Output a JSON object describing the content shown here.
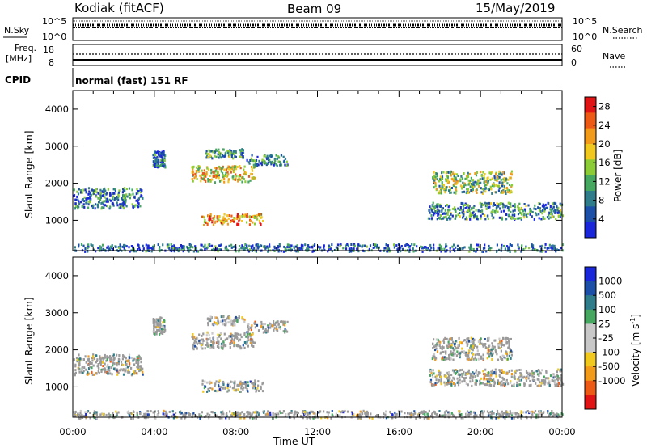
{
  "header": {
    "radar": "Kodiak (fitACF)",
    "beam": "Beam 09",
    "date": "15/May/2019"
  },
  "noise_panel": {
    "left_label": "N.Sky",
    "right_label": "N.Search",
    "left_ticks": [
      "10^5",
      "10^0"
    ],
    "right_ticks": [
      "10^5",
      "10^0"
    ]
  },
  "freq_panel": {
    "left_label_1": "Freq.",
    "left_label_2": "[MHz]",
    "right_label": "Nave",
    "left_ticks": [
      "18",
      "8"
    ],
    "right_ticks": [
      "60",
      "0"
    ]
  },
  "cpid": {
    "label": "CPID",
    "value": "normal (fast) 151 RF"
  },
  "colors": {
    "power_scale": [
      "#1a26d9",
      "#1c4fa8",
      "#2f7c8a",
      "#46a860",
      "#8ccc36",
      "#f0c81e",
      "#f29a1a",
      "#ec5a16",
      "#e01414"
    ],
    "velocity_scale": [
      "#e01414",
      "#ec5a16",
      "#f29a1a",
      "#f0c81e",
      "#c8c8c8",
      "#c8c8c8",
      "#46a860",
      "#2f7c8a",
      "#1c4fa8",
      "#1a26d9"
    ],
    "ground_scatter": "#9a9a9a"
  },
  "chart_data": [
    {
      "type": "heatmap",
      "quantity": "power",
      "ylabel": "Slant Range [km]",
      "yticks": [
        "1000",
        "2000",
        "3000",
        "4000"
      ],
      "ylim": [
        180,
        4500
      ],
      "xlim": [
        0,
        24
      ],
      "colorbar_label": "Power [dB]",
      "colorbar_ticks": [
        "4",
        "8",
        "12",
        "16",
        "20",
        "24",
        "28"
      ],
      "colorbar_range": [
        0,
        30
      ],
      "regions": [
        {
          "t0": 0.0,
          "t1": 3.4,
          "r0": 1350,
          "r1": 1900,
          "level": 0.25
        },
        {
          "t0": 3.9,
          "t1": 4.5,
          "r0": 2450,
          "r1": 2900,
          "level": 0.2
        },
        {
          "t0": 5.8,
          "t1": 8.9,
          "r0": 2050,
          "r1": 2500,
          "level": 0.6
        },
        {
          "t0": 6.5,
          "t1": 8.4,
          "r0": 2700,
          "r1": 2950,
          "level": 0.35
        },
        {
          "t0": 6.3,
          "t1": 9.3,
          "r0": 900,
          "r1": 1200,
          "level": 0.7
        },
        {
          "t0": 8.5,
          "t1": 10.5,
          "r0": 2500,
          "r1": 2800,
          "level": 0.25
        },
        {
          "t0": 17.6,
          "t1": 21.5,
          "r0": 1750,
          "r1": 2350,
          "level": 0.45
        },
        {
          "t0": 17.4,
          "t1": 24.0,
          "r0": 1050,
          "r1": 1500,
          "level": 0.3
        },
        {
          "t0": 0.0,
          "t1": 24.0,
          "r0": 180,
          "r1": 380,
          "level": 0.2
        }
      ]
    },
    {
      "type": "heatmap",
      "quantity": "velocity",
      "ylabel": "Slant Range [km]",
      "yticks": [
        "1000",
        "2000",
        "3000",
        "4000"
      ],
      "ylim": [
        180,
        4500
      ],
      "xlim": [
        0,
        24
      ],
      "xticks": [
        "00:00",
        "04:00",
        "08:00",
        "12:00",
        "16:00",
        "20:00",
        "00:00"
      ],
      "xlabel": "Time UT",
      "colorbar_label": "Velocity [m s",
      "colorbar_label_sup": "-1",
      "colorbar_label_end": "]",
      "colorbar_ticks": [
        "1000",
        "500",
        "100",
        "25",
        "-25",
        "-100",
        "-500",
        "-1000"
      ],
      "regions": [
        {
          "t0": 0.0,
          "t1": 3.4,
          "r0": 1350,
          "r1": 1900,
          "level": 0.5
        },
        {
          "t0": 3.9,
          "t1": 4.5,
          "r0": 2450,
          "r1": 2900,
          "level": 0.5
        },
        {
          "t0": 5.8,
          "t1": 8.9,
          "r0": 2050,
          "r1": 2500,
          "level": 0.5
        },
        {
          "t0": 6.5,
          "t1": 8.4,
          "r0": 2700,
          "r1": 2950,
          "level": 0.5
        },
        {
          "t0": 6.3,
          "t1": 9.3,
          "r0": 900,
          "r1": 1200,
          "level": 0.6
        },
        {
          "t0": 8.5,
          "t1": 10.5,
          "r0": 2500,
          "r1": 2800,
          "level": 0.5
        },
        {
          "t0": 17.6,
          "t1": 21.5,
          "r0": 1750,
          "r1": 2350,
          "level": 0.5
        },
        {
          "t0": 17.4,
          "t1": 24.0,
          "r0": 1050,
          "r1": 1500,
          "level": 0.5
        },
        {
          "t0": 0.0,
          "t1": 24.0,
          "r0": 180,
          "r1": 380,
          "level": 0.6
        }
      ]
    }
  ]
}
